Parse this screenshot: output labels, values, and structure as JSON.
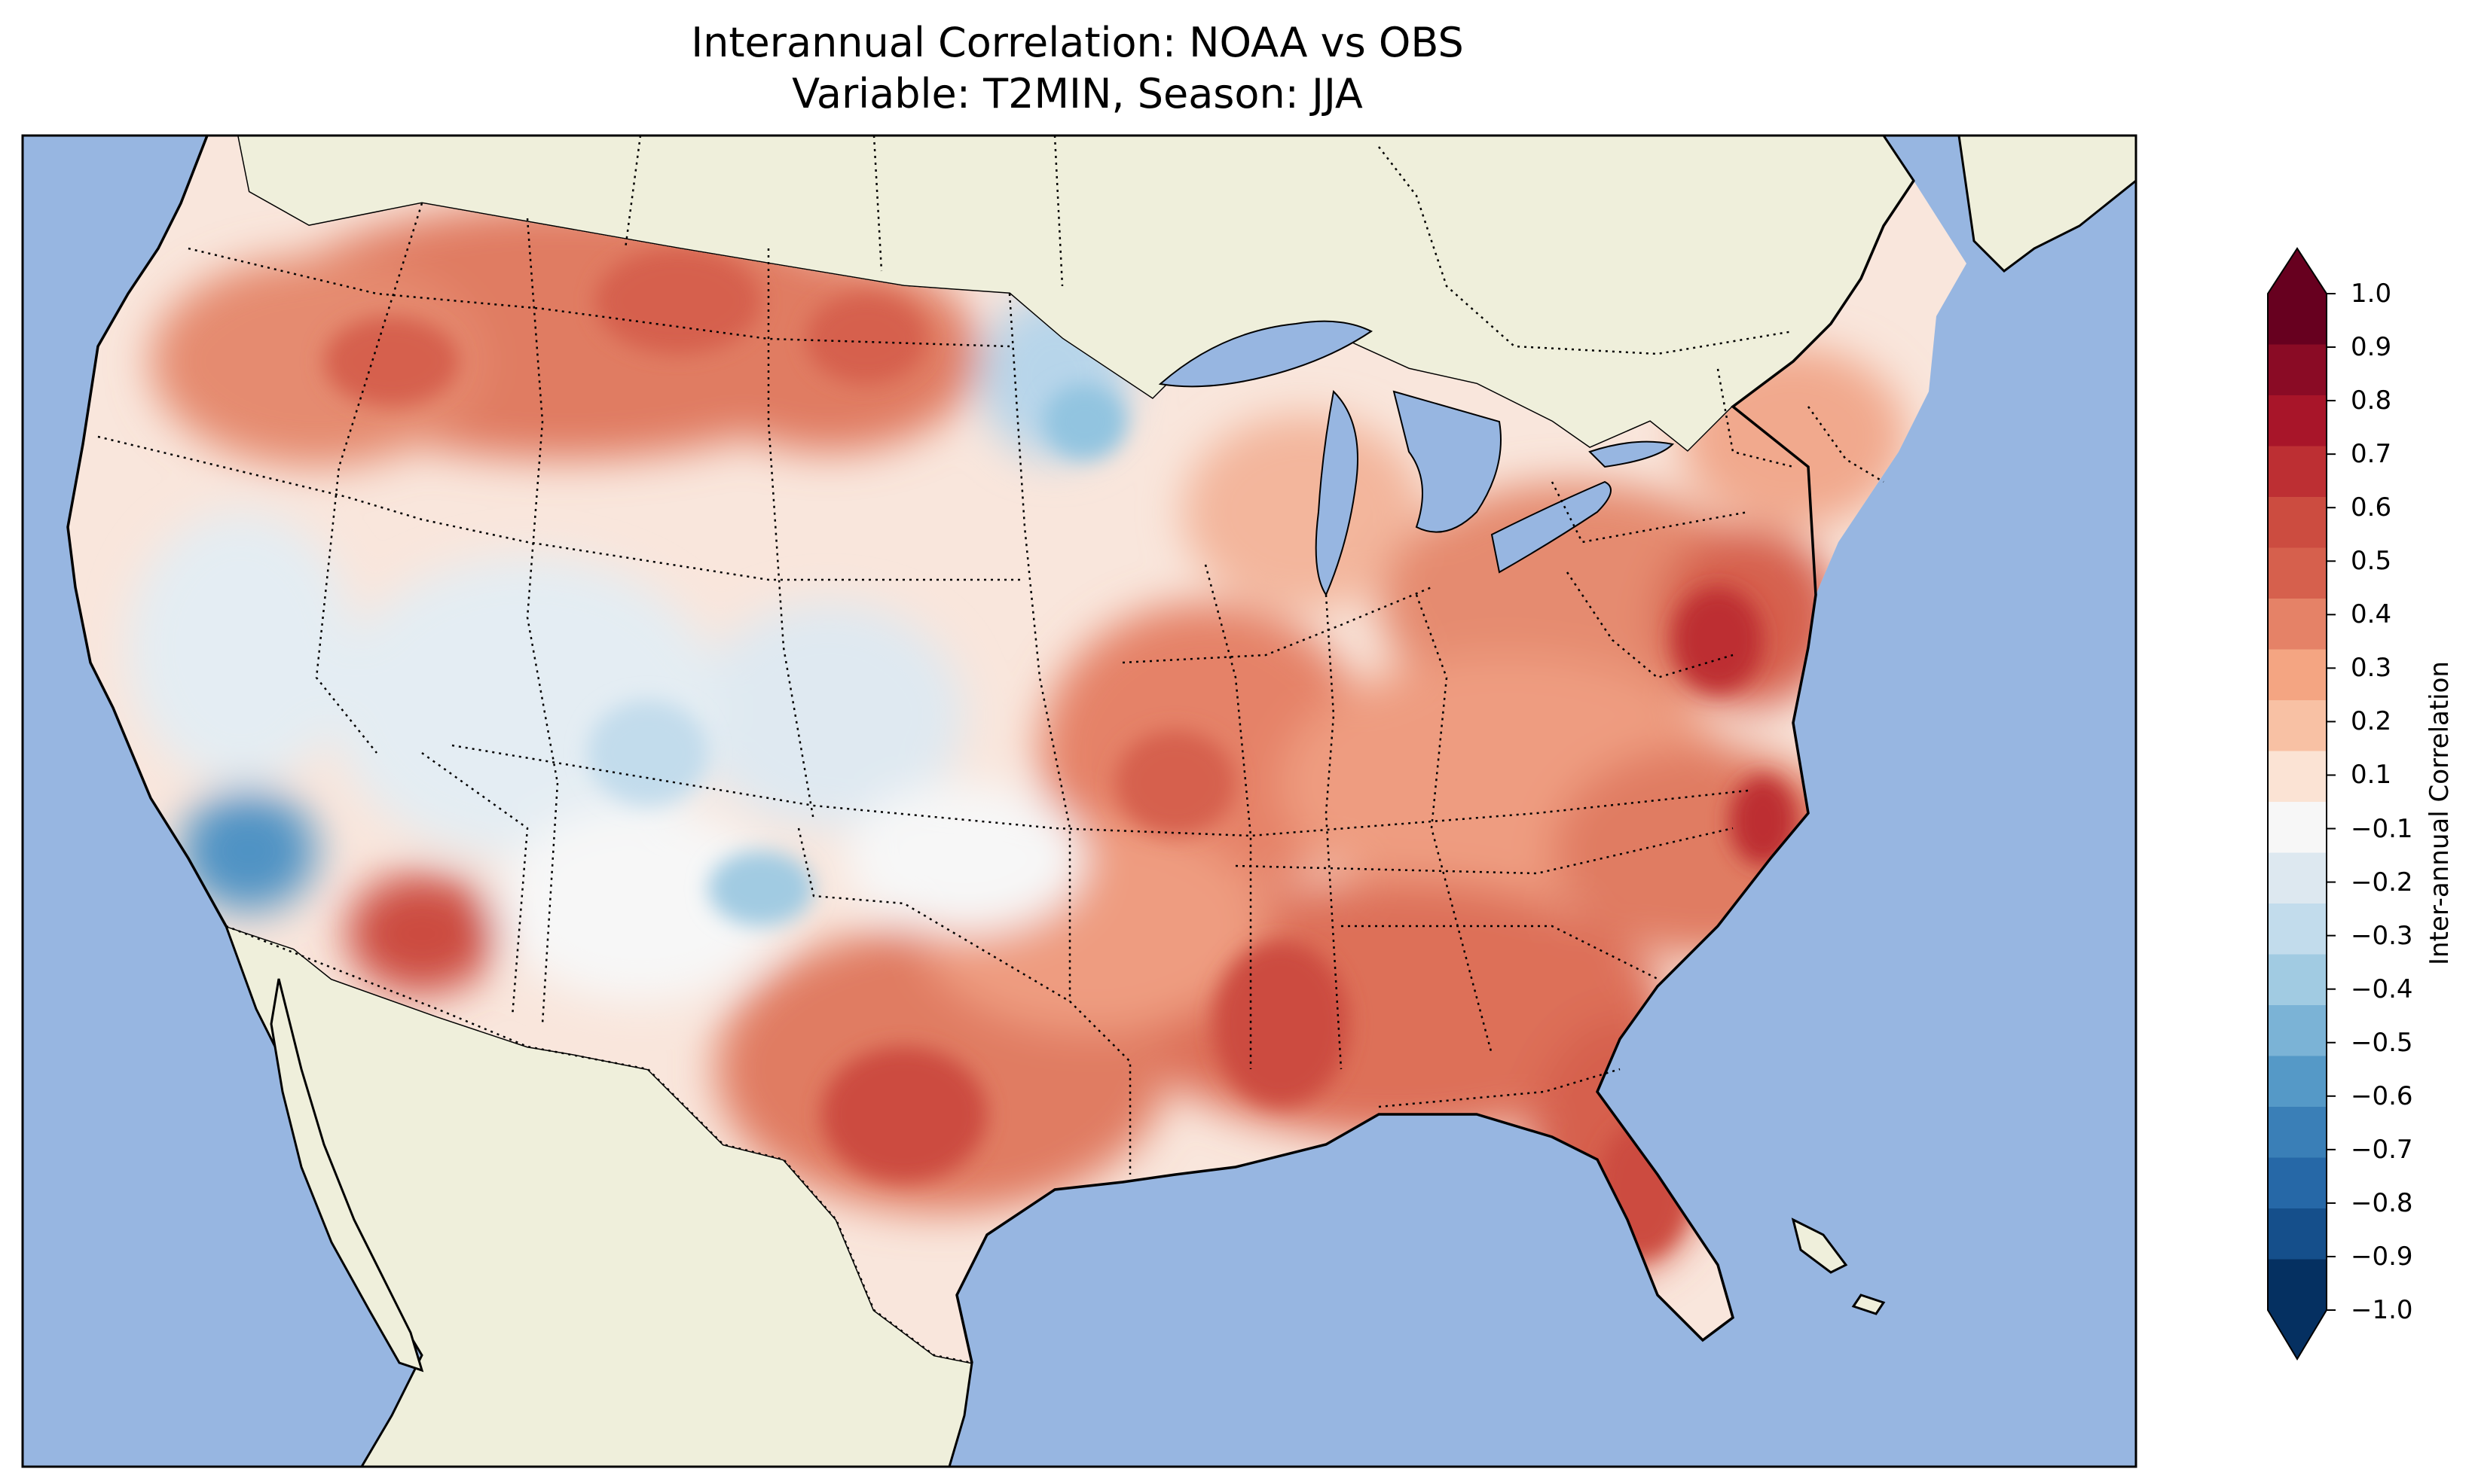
{
  "title": {
    "line1": "Interannual Correlation: NOAA vs OBS",
    "line2": "Variable: T2MIN, Season: JJA"
  },
  "colorbar": {
    "label": "Inter-annual Correlation",
    "ticks": [
      "1.0",
      "0.9",
      "0.8",
      "0.7",
      "0.6",
      "0.5",
      "0.4",
      "0.3",
      "0.2",
      "0.1",
      "−0.1",
      "−0.2",
      "−0.3",
      "−0.4",
      "−0.5",
      "−0.6",
      "−0.7",
      "−0.8",
      "−0.9",
      "−1.0"
    ],
    "colors": [
      "#67001f",
      "#8a0b25",
      "#a81529",
      "#bd2f33",
      "#cc4c40",
      "#d6604d",
      "#e58267",
      "#f4a582",
      "#f8c1a4",
      "#fbe3d4",
      "#f7f7f7",
      "#dde8f0",
      "#c2dcec",
      "#a1cbe2",
      "#7bb3d6",
      "#5599c7",
      "#3a7fb7",
      "#2668a7",
      "#154f8b",
      "#053061"
    ]
  },
  "map_colors": {
    "ocean": "#97b6e1",
    "land": "#efefdb",
    "border": "#000000"
  }
}
